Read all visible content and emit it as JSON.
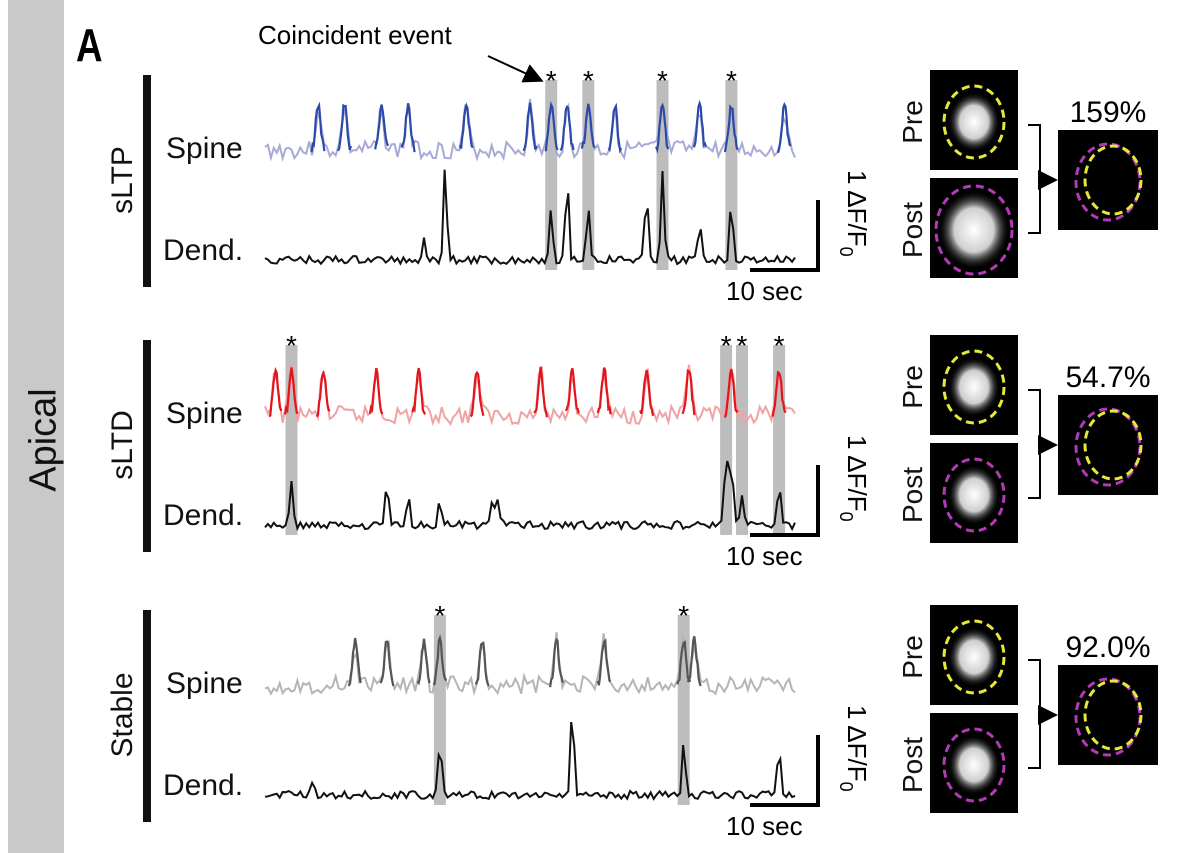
{
  "sidebar": {
    "label": "Apical"
  },
  "panel": {
    "letter": "A"
  },
  "annotation": {
    "coincident": "Coincident event"
  },
  "labels": {
    "spine": "Spine",
    "dend": "Dend."
  },
  "scalebar": {
    "y": "1 ΔF/F",
    "y_sub": "0",
    "x": "10 sec"
  },
  "image_labels": {
    "pre": "Pre",
    "post": "Post"
  },
  "rows": [
    {
      "group": "sLTP",
      "spine_color": "#2b4aa8",
      "spine_light": "#a9a9d6",
      "change": "159%",
      "events": [
        0.54,
        0.61,
        0.75,
        0.88
      ]
    },
    {
      "group": "sLTD",
      "spine_color": "#e3141b",
      "spine_light": "#f0a3a3",
      "change": "54.7%",
      "events": [
        0.05,
        0.87,
        0.9,
        0.97
      ]
    },
    {
      "group": "Stable",
      "spine_color": "#555555",
      "spine_light": "#b5b5b5",
      "change": "92.0%",
      "events": [
        0.33,
        0.79
      ]
    }
  ],
  "colors": {
    "pre_outline": "#e6e83a",
    "post_outline": "#b23ab5",
    "event_band": "#bdbdbd"
  }
}
